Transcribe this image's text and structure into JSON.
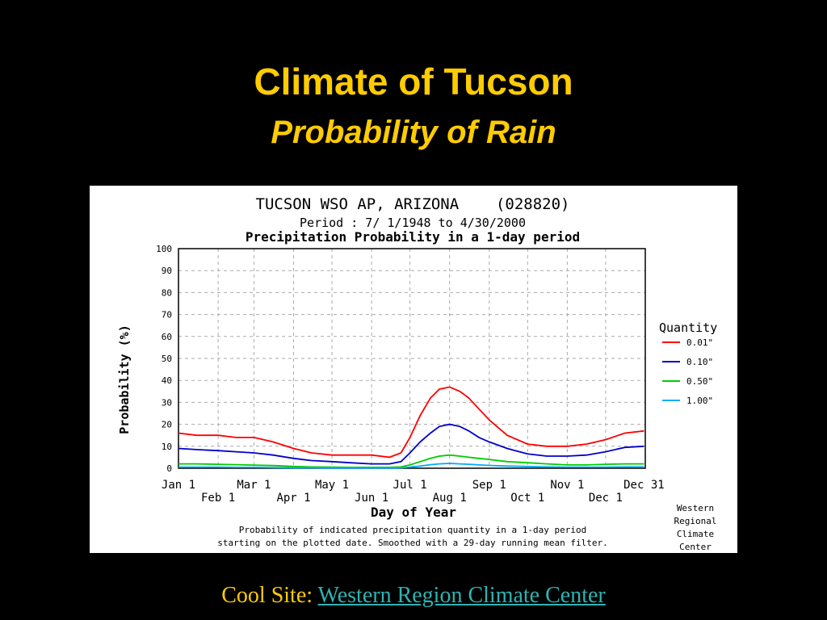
{
  "slide": {
    "title": "Climate of Tucson",
    "subtitle": "Probability of Rain",
    "footer_prefix": "Cool Site: ",
    "footer_link": "Western Region Climate Center"
  },
  "colors": {
    "background": "#000000",
    "title": "#ffcc00",
    "link": "#2fb3b3",
    "series": [
      "#ff0000",
      "#0000cc",
      "#00cc00",
      "#00aaff"
    ]
  },
  "chart_data": {
    "type": "line",
    "title": "TUCSON WSO AP, ARIZONA    (028820)",
    "subtitle": "Period : 7/ 1/1948 to 4/30/2000",
    "chart_heading": "Precipitation Probability in a 1-day period",
    "xlabel": "Day of Year",
    "ylabel": "Probability (%)",
    "ylim": [
      0,
      100
    ],
    "yticks": [
      0,
      10,
      20,
      30,
      40,
      50,
      60,
      70,
      80,
      90,
      100
    ],
    "xlim": [
      1,
      366
    ],
    "xticks_row1": [
      {
        "label": "Jan 1",
        "day": 1
      },
      {
        "label": "Mar 1",
        "day": 60
      },
      {
        "label": "May 1",
        "day": 121
      },
      {
        "label": "Jul 1",
        "day": 182
      },
      {
        "label": "Sep 1",
        "day": 244
      },
      {
        "label": "Nov 1",
        "day": 305
      },
      {
        "label": "Dec 31",
        "day": 365
      }
    ],
    "xticks_row2": [
      {
        "label": "Feb 1",
        "day": 32
      },
      {
        "label": "Apr 1",
        "day": 91
      },
      {
        "label": "Jun 1",
        "day": 152
      },
      {
        "label": "Aug 1",
        "day": 213
      },
      {
        "label": "Oct 1",
        "day": 274
      },
      {
        "label": "Dec 1",
        "day": 335
      }
    ],
    "grid": true,
    "legend_title": "Quantity",
    "legend_position": "right",
    "x": [
      1,
      15,
      32,
      46,
      60,
      75,
      91,
      105,
      121,
      135,
      152,
      166,
      175,
      182,
      190,
      198,
      205,
      213,
      221,
      228,
      236,
      244,
      258,
      274,
      289,
      305,
      320,
      335,
      350,
      365
    ],
    "series": [
      {
        "name": "0.01\"",
        "values": [
          16,
          15,
          15,
          14,
          14,
          12,
          9,
          7,
          6,
          6,
          6,
          5,
          7,
          14,
          24,
          32,
          36,
          37,
          35,
          32,
          27,
          22,
          15,
          11,
          10,
          10,
          11,
          13,
          16,
          17
        ]
      },
      {
        "name": "0.10\"",
        "values": [
          9,
          8.5,
          8,
          7.5,
          7,
          6,
          4.5,
          3.5,
          3,
          2.5,
          2,
          2,
          3,
          7,
          12,
          16,
          19,
          20,
          19,
          17,
          14,
          12,
          9,
          6.5,
          5.5,
          5.5,
          6,
          7.5,
          9.5,
          10
        ]
      },
      {
        "name": "0.50\"",
        "values": [
          2,
          2,
          1.8,
          1.6,
          1.4,
          1.2,
          0.8,
          0.6,
          0.5,
          0.4,
          0.4,
          0.4,
          0.6,
          1.5,
          3,
          4.5,
          5.5,
          6,
          5.5,
          5,
          4.5,
          4,
          3,
          2.5,
          2,
          1.5,
          1.5,
          1.8,
          2,
          2
        ]
      },
      {
        "name": "1.00\"",
        "values": [
          0.5,
          0.5,
          0.5,
          0.4,
          0.4,
          0.3,
          0.2,
          0.2,
          0.1,
          0.1,
          0.1,
          0.1,
          0.2,
          0.5,
          1,
          1.6,
          2,
          2.2,
          2,
          1.8,
          1.5,
          1.3,
          1,
          0.8,
          0.6,
          0.5,
          0.5,
          0.5,
          0.6,
          0.6
        ]
      }
    ],
    "caption_line1": "Probability of indicated precipitation quantity in a 1-day period",
    "caption_line2": "starting on the plotted date. Smoothed with a 29-day running mean filter.",
    "credit": [
      "Western",
      "Regional",
      "Climate",
      "Center"
    ]
  }
}
